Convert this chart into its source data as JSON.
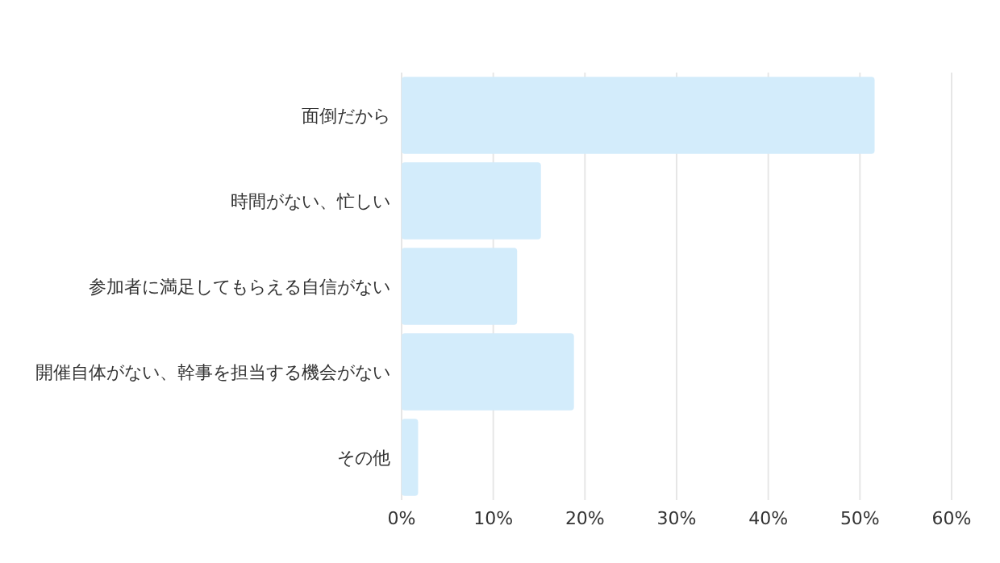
{
  "chart_data": {
    "type": "bar",
    "orientation": "horizontal",
    "categories": [
      "面倒だから",
      "時間がない、忙しい",
      "参加者に満足してもらえる自信がない",
      "開催自体がない、幹事を担当する機会がない",
      "その他"
    ],
    "values": [
      51.6,
      15.2,
      12.6,
      18.8,
      1.8
    ],
    "color": "#d3ecfb",
    "xlim": [
      0,
      60
    ],
    "xticks": [
      {
        "value": 0,
        "label": "0%"
      },
      {
        "value": 10,
        "label": "10%"
      },
      {
        "value": 20,
        "label": "20%"
      },
      {
        "value": 30,
        "label": "30%"
      },
      {
        "value": 40,
        "label": "40%"
      },
      {
        "value": 50,
        "label": "50%"
      },
      {
        "value": 60,
        "label": "60%"
      }
    ],
    "grid": "x"
  }
}
